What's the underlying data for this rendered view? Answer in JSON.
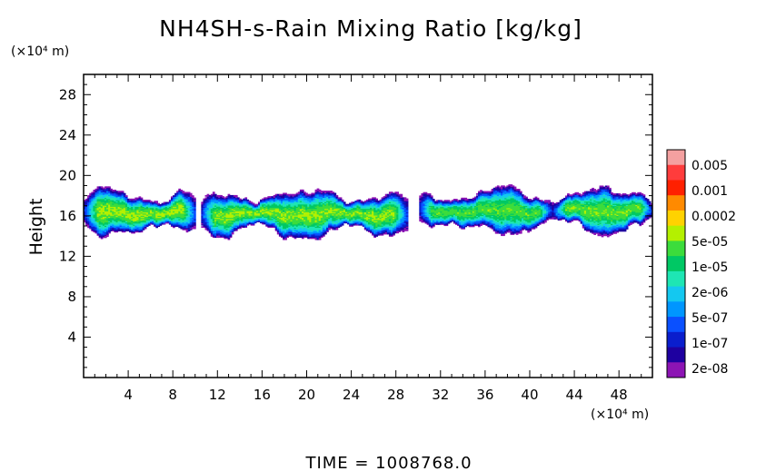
{
  "chart_data": {
    "type": "heatmap",
    "title": "NH4SH-s-Rain Mixing Ratio [kg/kg]",
    "xlabel": "",
    "ylabel": "Height",
    "x_unit_label": "(×10⁴ m)",
    "y_unit_label": "(×10⁴ m)",
    "xlim": [
      0,
      51
    ],
    "ylim": [
      0,
      30
    ],
    "x_ticks": [
      4,
      8,
      12,
      16,
      20,
      24,
      28,
      32,
      36,
      40,
      44,
      48
    ],
    "y_ticks": [
      4,
      8,
      12,
      16,
      20,
      24,
      28
    ],
    "time_label": "TIME = 1008768.0",
    "colorbar": {
      "labels": [
        "0.005",
        "0.001",
        "0.0002",
        "5e-05",
        "1e-05",
        "2e-06",
        "5e-07",
        "1e-07",
        "2e-08"
      ],
      "colors_top_to_bottom": [
        "#f4a0a0",
        "#ff3c3c",
        "#ff2000",
        "#ff8a00",
        "#ffd200",
        "#b4f000",
        "#3cdc3c",
        "#00c864",
        "#1ee6b4",
        "#14c8f0",
        "#0096ff",
        "#0a50ff",
        "#0a1ecd",
        "#1e00a0",
        "#8c14b4"
      ]
    },
    "field": {
      "description_values": "approx. log10 mixing ratio contours of a cloud layer between ~14 and ~19.5 ×10⁴ m height",
      "layer_segments": [
        {
          "x_start": 0,
          "x_end": 10,
          "bottom": 14.0,
          "top": 18.5,
          "peak_log10": -4.3
        },
        {
          "x_start": 10.5,
          "x_end": 29,
          "bottom": 13.8,
          "top": 18.5,
          "peak_log10": -4.4
        },
        {
          "x_start": 30,
          "x_end": 42,
          "bottom": 14.2,
          "top": 18.7,
          "peak_log10": -4.6
        },
        {
          "x_start": 42,
          "x_end": 51,
          "bottom": 14.3,
          "top": 18.7,
          "peak_log10": -4.5
        }
      ]
    }
  }
}
